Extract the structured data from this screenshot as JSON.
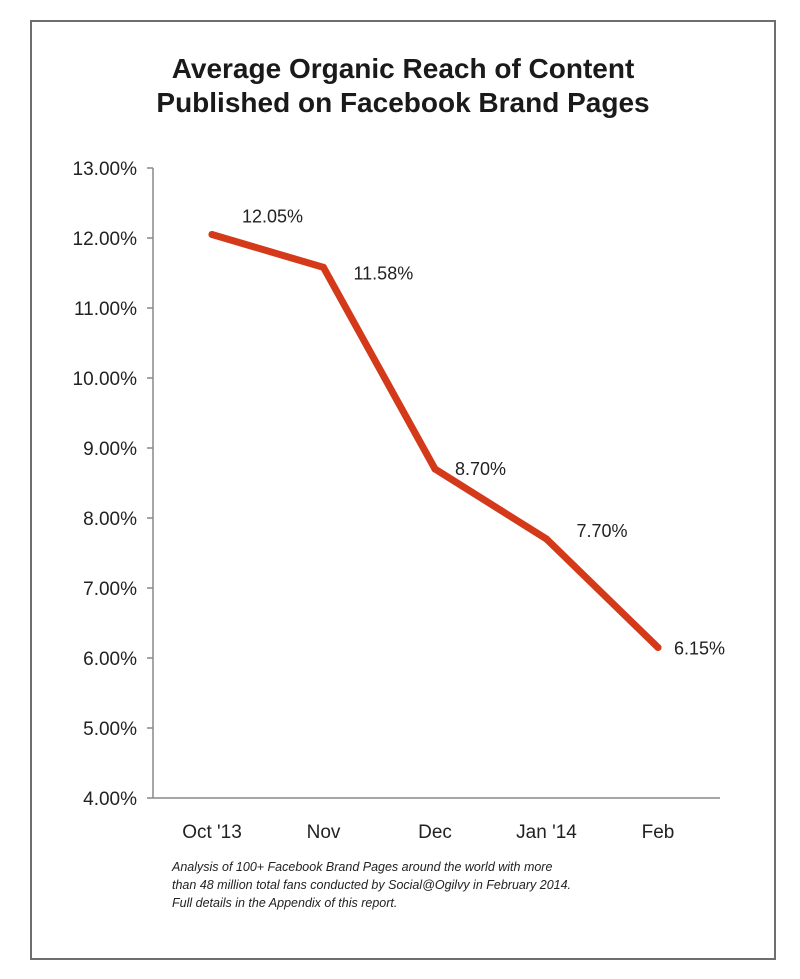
{
  "chart_data": {
    "type": "line",
    "title_lines": [
      "Average Organic Reach of Content",
      "Published on Facebook Brand Pages"
    ],
    "categories": [
      "Oct '13",
      "Nov",
      "Dec",
      "Jan '14",
      "Feb"
    ],
    "series": [
      {
        "values": [
          12.05,
          11.58,
          8.7,
          7.7,
          6.15
        ],
        "labels": [
          "12.05%",
          "11.58%",
          "8.70%",
          "7.70%",
          "6.15%"
        ],
        "color": "#d43a1a"
      }
    ],
    "ylim": [
      4,
      13
    ],
    "yticks": [
      13,
      12,
      11,
      10,
      9,
      8,
      7,
      6,
      5,
      4
    ],
    "ytick_labels": [
      "13.00%",
      "12.00%",
      "11.00%",
      "10.00%",
      "9.00%",
      "8.00%",
      "7.00%",
      "6.00%",
      "5.00%",
      "4.00%"
    ],
    "grid": false,
    "legend": "none"
  },
  "footnote": {
    "lines": [
      "Analysis of 100+ Facebook Brand Pages around the world with more",
      "than 48 million total fans conducted by Social@Ogilvy in February 2014.",
      "Full details in the Appendix of this report."
    ]
  },
  "colors": {
    "line": "#d43a1a",
    "axis": "#888888",
    "text": "#222222"
  }
}
